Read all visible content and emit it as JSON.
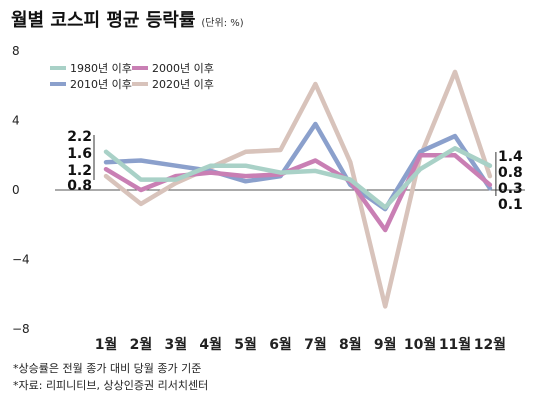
{
  "title": "월별 코스피 평균 등락률",
  "unit": "(단위: %)",
  "notes": [
    "*상승률은 전월 종가 대비 당월 종가 기준",
    "*자료: 리피니티브, 상상인증권 리서치센터"
  ],
  "chart_data": {
    "type": "line",
    "categories": [
      "1월",
      "2월",
      "3월",
      "4월",
      "5월",
      "6월",
      "7월",
      "8월",
      "9월",
      "10월",
      "11월",
      "12월"
    ],
    "ylim": [
      -8,
      8
    ],
    "yticks": [
      "8",
      "4",
      "0",
      "−4",
      "−8"
    ],
    "ytick_values": [
      8,
      4,
      0,
      -4,
      -8
    ],
    "grid": false,
    "legend_position": "top-left",
    "series": [
      {
        "name": "1980년 이후",
        "color": "#a9d1c7",
        "values": [
          2.2,
          0.6,
          0.6,
          1.4,
          1.4,
          1.0,
          1.1,
          0.6,
          -1.0,
          1.2,
          2.4,
          1.4
        ]
      },
      {
        "name": "2000년 이후",
        "color": "#c97fb4",
        "values": [
          1.2,
          0.0,
          0.8,
          1.0,
          0.8,
          0.9,
          1.7,
          0.5,
          -2.3,
          2.0,
          2.0,
          0.3
        ]
      },
      {
        "name": "2010년 이후",
        "color": "#8ba0cc",
        "values": [
          1.6,
          1.7,
          1.4,
          1.1,
          0.5,
          0.8,
          3.8,
          0.3,
          -1.1,
          2.2,
          3.1,
          0.1
        ]
      },
      {
        "name": "2020년 이후",
        "color": "#d8c3bb",
        "values": [
          0.8,
          -0.8,
          0.4,
          1.3,
          2.2,
          2.3,
          6.1,
          1.6,
          -6.7,
          1.9,
          6.8,
          0.8
        ]
      }
    ],
    "left_labels": [
      "2.2",
      "1.6",
      "1.2",
      "0.8"
    ],
    "right_labels": [
      "1.4",
      "0.8",
      "0.3",
      "0.1"
    ]
  }
}
